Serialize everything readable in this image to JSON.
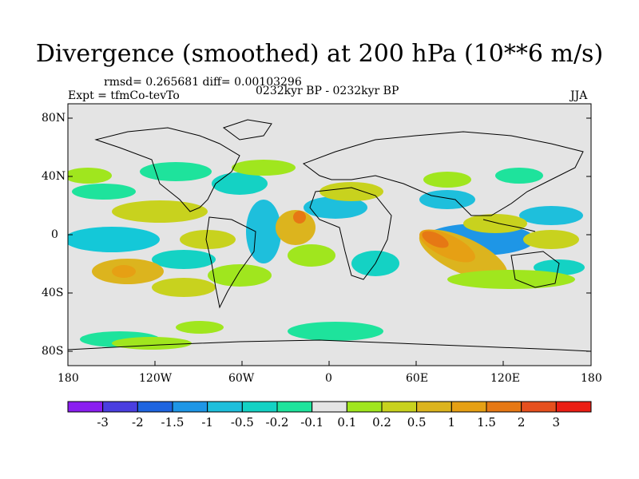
{
  "title": "Divergence (smoothed) at 200 hPa (10**6 m/s)",
  "stats": "rmsd= 0.265681  diff= 0.00103296",
  "experiment": "Expt = tfmCo-tevTo",
  "period": "0232kyr BP - 0232kyr BP",
  "season": "JJA",
  "axes": {
    "y_ticks": [
      "80N",
      "40N",
      "0",
      "40S",
      "80S"
    ],
    "x_ticks": [
      "180",
      "120W",
      "60W",
      "0",
      "60E",
      "120E",
      "180"
    ]
  },
  "colorbar": {
    "colors": [
      "#8a1ef0",
      "#4a3ee0",
      "#1e64e0",
      "#1e96e6",
      "#1ebfdc",
      "#14d2c4",
      "#1ee39c",
      "#e4e4e4",
      "#a0e61e",
      "#c8d21e",
      "#dcb41e",
      "#e6a014",
      "#e67814",
      "#e6501e",
      "#eb1e14"
    ],
    "labels": [
      "-3",
      "-2",
      "-1.5",
      "-1",
      "-0.5",
      "-0.2",
      "-0.1",
      "0.1",
      "0.2",
      "0.5",
      "1",
      "1.5",
      "2",
      "3"
    ]
  }
}
